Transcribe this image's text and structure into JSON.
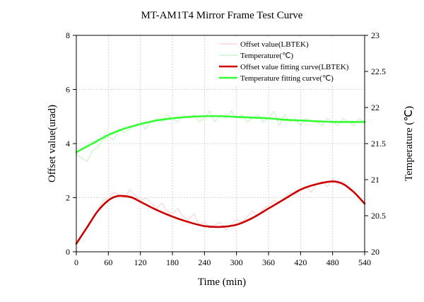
{
  "chart_data": {
    "type": "line",
    "title": "MT-AM1T4 Mirror Frame Test Curve",
    "xlabel": "Time (min)",
    "ylabel": "Offset value(urad)",
    "y2label": "Temperature (℃)",
    "xlim": [
      0,
      540
    ],
    "ylim": [
      0,
      8
    ],
    "y2lim": [
      20,
      23
    ],
    "x_ticks": [
      "0",
      "60",
      "120",
      "180",
      "240",
      "300",
      "360",
      "420",
      "480",
      "540"
    ],
    "y_ticks": [
      "0",
      "2",
      "4",
      "6",
      "8"
    ],
    "y2_ticks": [
      "20",
      "20.5",
      "21",
      "21.5",
      "22",
      "22.5",
      "23"
    ],
    "grid": true,
    "legend_position": "top-right",
    "series": [
      {
        "name": "Offset value(LBTEK)",
        "axis": "left",
        "style": "raw",
        "color": "#f9d5d5",
        "x": [
          0,
          10,
          20,
          30,
          40,
          50,
          60,
          70,
          80,
          90,
          100,
          110,
          120,
          130,
          140,
          150,
          160,
          170,
          180,
          190,
          200,
          210,
          220,
          230,
          240,
          250,
          260,
          270,
          280,
          290,
          300,
          310,
          320,
          330,
          340,
          350,
          360,
          370,
          380,
          390,
          400,
          410,
          420,
          430,
          440,
          450,
          460,
          470,
          480,
          490,
          500,
          510,
          520,
          530,
          540
        ],
        "y": [
          0.3,
          0.6,
          0.9,
          1.2,
          1.5,
          1.9,
          2.0,
          2.2,
          2.1,
          2.0,
          2.3,
          2.1,
          1.9,
          2.0,
          1.8,
          1.6,
          1.8,
          1.5,
          1.4,
          1.6,
          1.3,
          1.2,
          1.4,
          1.0,
          1.1,
          0.9,
          1.0,
          1.1,
          0.8,
          1.0,
          1.2,
          1.1,
          1.3,
          1.5,
          1.3,
          1.6,
          1.7,
          1.9,
          1.8,
          2.0,
          2.2,
          2.1,
          2.3,
          2.4,
          2.2,
          2.5,
          2.6,
          2.4,
          2.7,
          2.5,
          2.6,
          2.3,
          2.2,
          2.0,
          1.8
        ]
      },
      {
        "name": "Temperature(℃)",
        "axis": "right",
        "style": "raw",
        "color": "#c8f5c8",
        "x": [
          0,
          10,
          20,
          30,
          40,
          50,
          60,
          70,
          80,
          90,
          100,
          110,
          120,
          130,
          140,
          150,
          160,
          170,
          180,
          190,
          200,
          210,
          220,
          230,
          240,
          250,
          260,
          270,
          280,
          290,
          300,
          310,
          320,
          330,
          340,
          350,
          360,
          370,
          380,
          390,
          400,
          410,
          420,
          430,
          440,
          450,
          460,
          470,
          480,
          490,
          500,
          510,
          520,
          530,
          540
        ],
        "y": [
          21.35,
          21.3,
          21.25,
          21.4,
          21.45,
          21.55,
          21.6,
          21.55,
          21.7,
          21.65,
          21.7,
          21.75,
          21.8,
          21.7,
          21.8,
          21.85,
          21.8,
          21.9,
          21.85,
          21.8,
          21.9,
          21.85,
          21.9,
          21.8,
          21.85,
          21.95,
          21.8,
          21.9,
          21.85,
          21.95,
          21.85,
          21.9,
          21.8,
          21.85,
          21.9,
          21.8,
          21.85,
          21.95,
          21.75,
          21.9,
          21.8,
          21.85,
          21.75,
          21.85,
          21.8,
          21.8,
          21.75,
          21.85,
          21.8,
          21.75,
          21.85,
          21.8,
          21.75,
          21.85,
          21.8
        ]
      },
      {
        "name": "Offset value fitting curve(LBTEK)",
        "axis": "left",
        "style": "fit",
        "color": "#cc0000",
        "x": [
          0,
          20,
          40,
          60,
          75,
          90,
          105,
          120,
          150,
          180,
          210,
          240,
          270,
          300,
          330,
          360,
          390,
          420,
          450,
          480,
          500,
          520,
          540
        ],
        "y": [
          0.3,
          0.9,
          1.5,
          1.9,
          2.05,
          2.06,
          2.0,
          1.85,
          1.55,
          1.3,
          1.1,
          0.95,
          0.92,
          1.0,
          1.25,
          1.6,
          1.95,
          2.3,
          2.5,
          2.6,
          2.5,
          2.2,
          1.78
        ]
      },
      {
        "name": "Temperature fitting curve(℃)",
        "axis": "right",
        "style": "fit",
        "color": "#33ff33",
        "x": [
          0,
          20,
          40,
          60,
          80,
          100,
          120,
          150,
          180,
          210,
          240,
          270,
          300,
          330,
          360,
          390,
          420,
          450,
          480,
          510,
          540
        ],
        "y": [
          21.38,
          21.46,
          21.54,
          21.62,
          21.68,
          21.73,
          21.77,
          21.82,
          21.85,
          21.87,
          21.88,
          21.88,
          21.87,
          21.86,
          21.85,
          21.83,
          21.82,
          21.81,
          21.8,
          21.8,
          21.8
        ]
      }
    ]
  }
}
